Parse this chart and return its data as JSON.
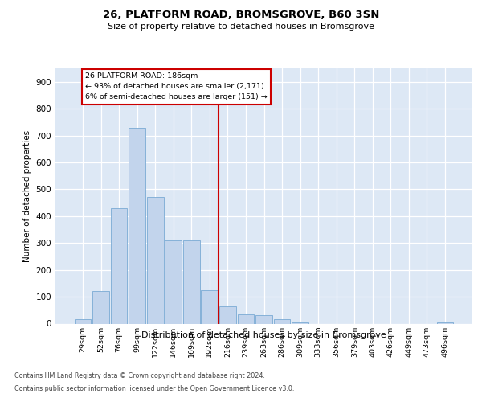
{
  "title1": "26, PLATFORM ROAD, BROMSGROVE, B60 3SN",
  "title2": "Size of property relative to detached houses in Bromsgrove",
  "xlabel": "Distribution of detached houses by size in Bromsgrove",
  "ylabel": "Number of detached properties",
  "footnote1": "Contains HM Land Registry data © Crown copyright and database right 2024.",
  "footnote2": "Contains public sector information licensed under the Open Government Licence v3.0.",
  "annotation_line1": "26 PLATFORM ROAD: 186sqm",
  "annotation_line2": "← 93% of detached houses are smaller (2,171)",
  "annotation_line3": "6% of semi-detached houses are larger (151) →",
  "bar_labels": [
    "29sqm",
    "52sqm",
    "76sqm",
    "99sqm",
    "122sqm",
    "146sqm",
    "169sqm",
    "192sqm",
    "216sqm",
    "239sqm",
    "263sqm",
    "286sqm",
    "309sqm",
    "333sqm",
    "356sqm",
    "379sqm",
    "403sqm",
    "426sqm",
    "449sqm",
    "473sqm",
    "496sqm"
  ],
  "bar_values": [
    15,
    120,
    430,
    730,
    470,
    310,
    310,
    125,
    65,
    35,
    30,
    15,
    5,
    0,
    0,
    0,
    0,
    0,
    0,
    0,
    5
  ],
  "bar_color": "#c2d4ec",
  "bar_edge_color": "#7aaad4",
  "vline_color": "#cc0000",
  "vline_x": 7.5,
  "bg_color": "#dde8f5",
  "ylim": [
    0,
    950
  ],
  "yticks": [
    0,
    100,
    200,
    300,
    400,
    500,
    600,
    700,
    800,
    900
  ]
}
